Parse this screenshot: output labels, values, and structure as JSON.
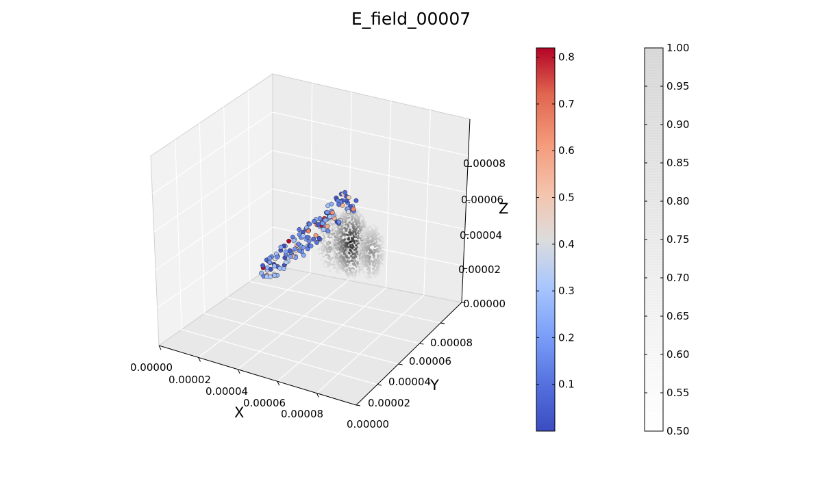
{
  "chart_data": {
    "type": "scatter",
    "title": "E_field_00007",
    "projection": "3d",
    "grid": true,
    "axes": {
      "x": {
        "label": "X",
        "ticks": [
          "0.00000",
          "0.00002",
          "0.00004",
          "0.00006",
          "0.00008"
        ]
      },
      "y": {
        "label": "Y",
        "ticks": [
          "0.00000",
          "0.00002",
          "0.00004",
          "0.00006",
          "0.00008"
        ]
      },
      "z": {
        "label": "Z",
        "ticks": [
          "0.00000",
          "0.00002",
          "0.00004",
          "0.00006",
          "0.00008"
        ]
      }
    },
    "colorbars": [
      {
        "name": "coolwarm",
        "range": [
          0.0,
          0.82
        ],
        "ticks": [
          "0.1",
          "0.2",
          "0.3",
          "0.4",
          "0.5",
          "0.6",
          "0.7",
          "0.8"
        ],
        "colors": [
          "#3b4cc0",
          "#dddddd",
          "#b40426"
        ]
      },
      {
        "name": "greys",
        "range": [
          0.5,
          1.0
        ],
        "ticks": [
          "0.50",
          "0.55",
          "0.60",
          "0.65",
          "0.70",
          "0.75",
          "0.80",
          "0.85",
          "0.90",
          "0.95",
          "1.00"
        ],
        "colors": [
          "#ffffff",
          "#dcdcdc"
        ]
      }
    ],
    "series": [
      {
        "kind": "particles",
        "colormap": "coolwarm",
        "x_range": [
          1e-05,
          4e-05
        ],
        "y_range": [
          1e-05,
          4e-05
        ],
        "z_range": [
          1.5e-05,
          6e-05
        ]
      },
      {
        "kind": "field-cloud",
        "colormap": "greys",
        "x_range": [
          3e-05,
          6e-05
        ],
        "y_range": [
          3e-05,
          7e-05
        ],
        "z_range": [
          1e-05,
          5e-05
        ]
      }
    ]
  }
}
